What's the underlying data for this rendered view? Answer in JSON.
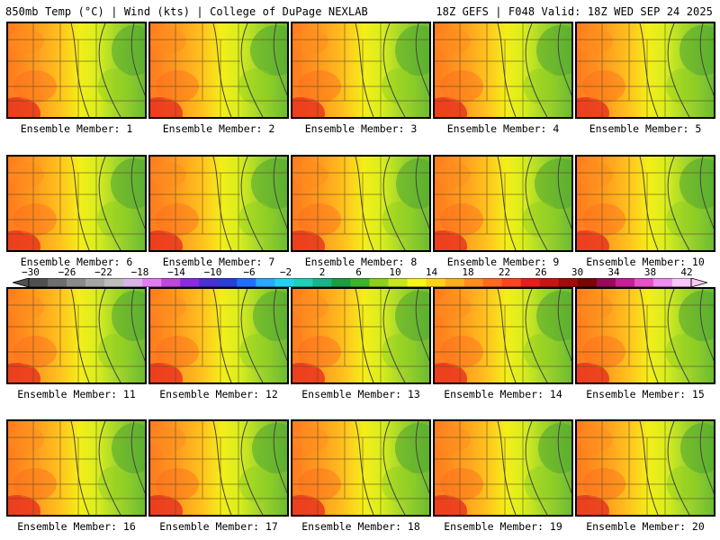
{
  "header": {
    "left": "850mb Temp (°C) | Wind (kts) | College of DuPage NEXLAB",
    "right": "18Z GEFS | F048 Valid: 18Z WED SEP 24 2025"
  },
  "panels": [
    {
      "label": "Ensemble Member: 1",
      "warmth": 0.62,
      "green": 0.35
    },
    {
      "label": "Ensemble Member: 2",
      "warmth": 0.55,
      "green": 0.55
    },
    {
      "label": "Ensemble Member: 3",
      "warmth": 0.55,
      "green": 0.4
    },
    {
      "label": "Ensemble Member: 4",
      "warmth": 0.58,
      "green": 0.45
    },
    {
      "label": "Ensemble Member: 5",
      "warmth": 0.7,
      "green": 0.4
    },
    {
      "label": "Ensemble Member: 6",
      "warmth": 0.6,
      "green": 0.4
    },
    {
      "label": "Ensemble Member: 7",
      "warmth": 0.55,
      "green": 0.5
    },
    {
      "label": "Ensemble Member: 8",
      "warmth": 0.65,
      "green": 0.35
    },
    {
      "label": "Ensemble Member: 9",
      "warmth": 0.55,
      "green": 0.55
    },
    {
      "label": "Ensemble Member: 10",
      "warmth": 0.62,
      "green": 0.4
    },
    {
      "label": "Ensemble Member: 11",
      "warmth": 0.58,
      "green": 0.35
    },
    {
      "label": "Ensemble Member: 12",
      "warmth": 0.55,
      "green": 0.4
    },
    {
      "label": "Ensemble Member: 13",
      "warmth": 0.58,
      "green": 0.4
    },
    {
      "label": "Ensemble Member: 14",
      "warmth": 0.6,
      "green": 0.45
    },
    {
      "label": "Ensemble Member: 15",
      "warmth": 0.6,
      "green": 0.45
    },
    {
      "label": "Ensemble Member: 16",
      "warmth": 0.62,
      "green": 0.35
    },
    {
      "label": "Ensemble Member: 17",
      "warmth": 0.55,
      "green": 0.45
    },
    {
      "label": "Ensemble Member: 18",
      "warmth": 0.55,
      "green": 0.4
    },
    {
      "label": "Ensemble Member: 19",
      "warmth": 0.6,
      "green": 0.35
    },
    {
      "label": "Ensemble Member: 20",
      "warmth": 0.62,
      "green": 0.35
    }
  ],
  "colorbar": {
    "ticks": [
      "-30",
      "-26",
      "-22",
      "-18",
      "-14",
      "-10",
      "-6",
      "-2",
      "2",
      "6",
      "10",
      "14",
      "18",
      "22",
      "26",
      "30",
      "34",
      "38",
      "42"
    ],
    "colors": [
      "#505050",
      "#6e6e6e",
      "#8a8a8a",
      "#a5a5a5",
      "#bdbdbd",
      "#d8b4e8",
      "#e27cf0",
      "#c046e0",
      "#8a2be2",
      "#4b2fd0",
      "#2a3fd8",
      "#1f6fff",
      "#2aa8ff",
      "#22d2f0",
      "#1fd0b8",
      "#18b48a",
      "#1a9e40",
      "#3cb42c",
      "#8ccf1e",
      "#c6e61e",
      "#f7f71a",
      "#ffd21a",
      "#ffb01e",
      "#ff8c1e",
      "#ff6a1e",
      "#ff451e",
      "#e81e1e",
      "#c81414",
      "#a00c0c",
      "#7a0606",
      "#9a0a5a",
      "#c81e96",
      "#e650c8",
      "#f08cf0",
      "#f8c8f8"
    ]
  }
}
